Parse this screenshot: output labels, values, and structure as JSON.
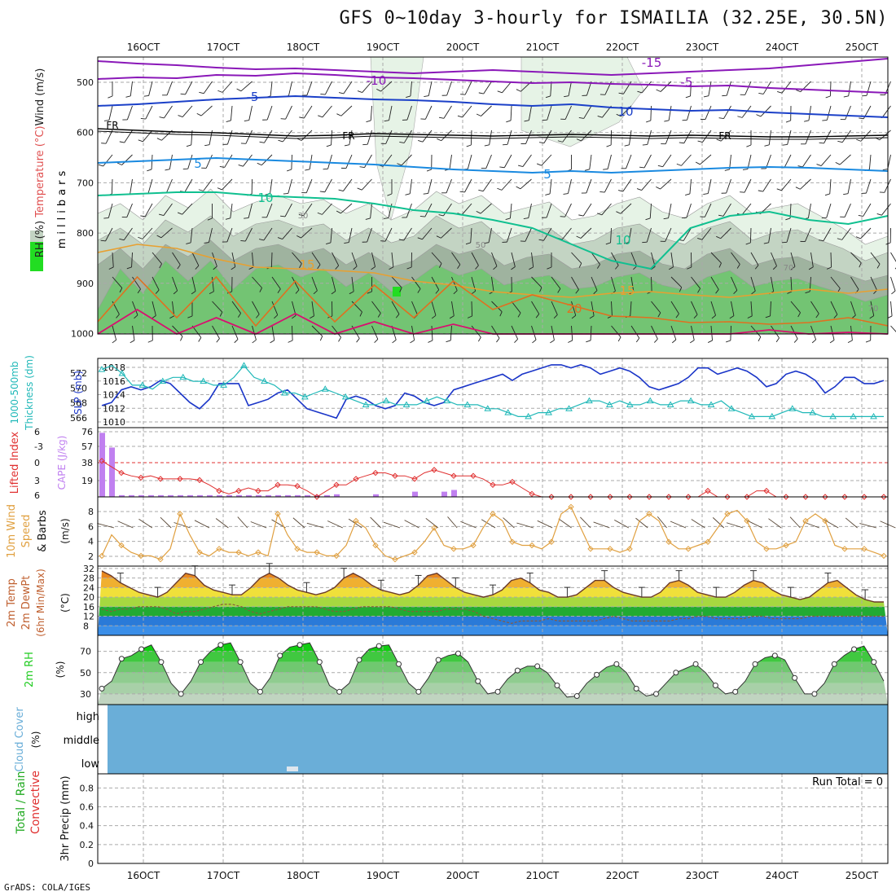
{
  "title": "GFS 0~10day 3-hourly for ISMAILIA (32.25E, 30.5N)",
  "footer": "GrADS: COLA/IGES",
  "colors": {
    "rh_light": "#e6f3e6",
    "rh_mid": "#c3d4c3",
    "rh_dark": "#9fb39f",
    "rh_green": "#6cc86c",
    "rh_bright": "#22dd22",
    "temp_orange": "#e8a030",
    "temp_dark_orange": "#e07020",
    "temp_pink": "#d81070",
    "temp_purple": "#8a18b8",
    "temp_blue": "#1b40c8",
    "temp_lightblue": "#1a8ae0",
    "temp_teal": "#10c090",
    "slp": "#1a35c8",
    "thickness": "#20b8b8",
    "lifted": "#e03030",
    "cape": "#c080f0",
    "wind10": "#e0a040",
    "cloud": "#6aaed8",
    "rh2m": "#22cc22"
  },
  "chart_data": [
    {
      "id": "upper-air",
      "type": "contour",
      "xlabels": [
        "16OCT",
        "17OCT",
        "18OCT",
        "19OCT",
        "20OCT",
        "21OCT",
        "22OCT",
        "23OCT",
        "24OCT",
        "25OCT"
      ],
      "ylabel": "millibars",
      "yticks": [
        500,
        600,
        700,
        800,
        900,
        1000
      ],
      "legend": [
        "RH (%)",
        "Temperature (°C)",
        "Wind (m/s)"
      ],
      "contour_labels": [
        "-15",
        "-10",
        "-5",
        "FR",
        "FR",
        "FR",
        "5",
        "5",
        "10",
        "10",
        "15",
        "15",
        "20",
        "-5",
        "10",
        "30",
        "50",
        "70",
        "70"
      ]
    },
    {
      "id": "slp-thickness",
      "type": "line",
      "left_ylabel": "1000-500mb Thickness (dm)",
      "left_yticks": [
        566,
        568,
        570,
        572
      ],
      "right_ylabel": "SLP (mb)",
      "right_yticks": [
        1010,
        1012,
        1014,
        1016,
        1018
      ],
      "series": [
        {
          "name": "SLP (mb)",
          "values": [
            1012,
            1012.5,
            1014.5,
            1015,
            1014.5,
            1015,
            1016,
            1015.5,
            1014,
            1012.5,
            1011.5,
            1013,
            1015.5,
            1015.5,
            1015.5,
            1012,
            1012.5,
            1013,
            1014,
            1014.5,
            1013,
            1011.5,
            1011,
            1010.5,
            1010,
            1013,
            1013.5,
            1013,
            1012,
            1011.5,
            1012,
            1014,
            1013.5,
            1012.5,
            1012,
            1012.5,
            1014.5,
            1015,
            1015.5,
            1016,
            1016.5,
            1017,
            1016,
            1017,
            1017.5,
            1018,
            1018.5,
            1018.5,
            1018,
            1018.5,
            1018,
            1017,
            1017.5,
            1018,
            1017.5,
            1016.5,
            1015,
            1014.5,
            1015,
            1015.5,
            1016.5,
            1018,
            1018,
            1017,
            1017.5,
            1018,
            1017.5,
            1016.5,
            1015,
            1015.5,
            1017,
            1017.5,
            1017,
            1016,
            1014,
            1015,
            1016.5,
            1016.5,
            1015.5,
            1015.5,
            1016
          ]
        },
        {
          "name": "1000-500mb Thickness (dm)",
          "values": [
            572,
            572.5,
            571.5,
            570,
            570,
            569.5,
            570.5,
            571,
            571,
            570.5,
            570.5,
            570,
            570,
            571,
            572.5,
            571,
            570.5,
            570,
            569,
            569,
            568.5,
            569,
            569.5,
            569,
            568.5,
            568,
            567.5,
            567.5,
            568,
            567.5,
            567.5,
            567.5,
            568,
            568.5,
            568,
            567.5,
            567.5,
            567.5,
            567,
            567,
            566.5,
            566,
            566,
            566.5,
            566.5,
            567,
            567,
            567.5,
            568,
            568,
            567.5,
            568,
            567.5,
            567.5,
            568,
            567.5,
            567.5,
            568,
            568,
            567.5,
            567.5,
            568,
            567,
            566.5,
            566,
            566,
            566,
            566.5,
            567,
            566.5,
            566.5,
            566,
            566,
            566,
            566,
            566,
            566,
            566
          ]
        }
      ]
    },
    {
      "id": "lifted-cape",
      "type": "line+bar",
      "left_ylabel": "Lifted Index",
      "left_yticks": [
        "6",
        "-3",
        "0",
        "3",
        "6"
      ],
      "right_ylabel": "CAPE (J/kg)",
      "right_yticks": [
        19,
        38,
        57,
        76
      ],
      "series": [
        {
          "name": "Lifted Index",
          "values": [
            0,
            1,
            2,
            2.5,
            2.8,
            2.5,
            3,
            3,
            3,
            3,
            3.2,
            4,
            5,
            5.5,
            5,
            4.5,
            5,
            5,
            4,
            4,
            4.2,
            5,
            6,
            5,
            4,
            4,
            3,
            2.5,
            2,
            2,
            2.5,
            2.5,
            3,
            2,
            1.5,
            2,
            2.5,
            2.5,
            2.5,
            3,
            4,
            4,
            3.5,
            4.5,
            5.5,
            6,
            6,
            6,
            6,
            6,
            6,
            6,
            6,
            6,
            6,
            6,
            6,
            6,
            6,
            6,
            6,
            6,
            5,
            6,
            6,
            6,
            6,
            5,
            5,
            6,
            6,
            6,
            6,
            6,
            6,
            6,
            6,
            6,
            6,
            6,
            6
          ]
        },
        {
          "name": "CAPE (J/kg)",
          "values": [
            74,
            57,
            2,
            2,
            2,
            2,
            2,
            2,
            2,
            2,
            2,
            2,
            2,
            2,
            2,
            2,
            2,
            2,
            2,
            2,
            2,
            2,
            2,
            2,
            3,
            0,
            0,
            0,
            3,
            0,
            0,
            0,
            6,
            0,
            0,
            6,
            8,
            0,
            0,
            0,
            0,
            0,
            0,
            0,
            0,
            0,
            0,
            0,
            0,
            0,
            0,
            0,
            0,
            0,
            0,
            0,
            0,
            0,
            0,
            0,
            0,
            0,
            0,
            0,
            0,
            0,
            0,
            0,
            0,
            0,
            0,
            0,
            0,
            0,
            0,
            0,
            0,
            0,
            0,
            0,
            0
          ]
        }
      ]
    },
    {
      "id": "wind10m",
      "type": "line",
      "left_ylabel": "10m Wind Speed & Barbs",
      "right_ylabel": "(m/s)",
      "yticks": [
        2,
        4,
        6,
        8
      ],
      "series": [
        {
          "name": "10m Wind Speed",
          "values": [
            2,
            5,
            3.5,
            2.5,
            2,
            2,
            1.5,
            3,
            8,
            5,
            2.5,
            2,
            3,
            2.5,
            2.5,
            2,
            2.5,
            2,
            8,
            5,
            3,
            2.5,
            2.5,
            2,
            2,
            3.5,
            7,
            6,
            3.5,
            2,
            1.5,
            2,
            2.5,
            4,
            6,
            3.5,
            3,
            3,
            3.5,
            6,
            8,
            7,
            4,
            3.5,
            3.5,
            3,
            4,
            8,
            9,
            6,
            3,
            3,
            3,
            2.5,
            3,
            7,
            8,
            7,
            4,
            3,
            3,
            3.5,
            4,
            6,
            8,
            8.5,
            7,
            4,
            3,
            3,
            3.5,
            4,
            7,
            8,
            7,
            3.5,
            3,
            3,
            3,
            2.5,
            2
          ]
        }
      ]
    },
    {
      "id": "temp2m",
      "type": "area",
      "left_ylabel": "2m Temp 2m DewPt (6hr Min/Max)",
      "right_ylabel": "(°C)",
      "yticks": [
        8,
        12,
        16,
        20,
        24,
        28,
        32
      ],
      "series": [
        {
          "name": "2m Temp",
          "values": [
            31,
            29,
            26,
            24,
            22,
            21,
            20,
            22,
            26,
            30,
            29,
            25,
            23,
            22,
            21,
            21,
            24,
            28,
            30,
            28,
            25,
            23,
            22,
            21,
            22,
            24,
            28,
            30,
            28,
            25,
            23,
            22,
            21,
            22,
            25,
            29,
            30,
            27,
            24,
            22,
            21,
            20,
            21,
            23,
            27,
            28,
            26,
            23,
            22,
            20,
            20,
            21,
            24,
            27,
            27,
            24,
            22,
            21,
            20,
            20,
            22,
            26,
            27,
            25,
            22,
            21,
            20,
            20,
            22,
            25,
            27,
            26,
            23,
            21,
            20,
            19,
            20,
            23,
            26,
            27,
            24,
            21,
            19,
            18,
            18
          ]
        },
        {
          "name": "2m DewPt",
          "values": [
            15,
            14,
            15,
            15,
            16,
            16,
            16,
            15,
            13,
            14,
            14,
            15,
            16,
            17,
            17,
            16,
            14,
            13,
            14,
            15,
            16,
            16,
            16,
            16,
            15,
            14,
            14,
            15,
            16,
            16,
            16,
            16,
            15,
            14,
            14,
            14,
            14,
            15,
            15,
            15,
            14,
            12,
            11,
            10,
            9,
            10,
            10,
            10,
            11,
            10,
            10,
            10,
            10,
            10,
            11,
            12,
            11,
            10,
            10,
            10,
            10,
            10,
            11,
            11,
            12,
            12,
            11,
            11,
            11,
            11,
            12,
            12,
            11,
            11,
            11,
            11,
            12,
            12,
            12,
            12,
            12,
            12,
            12,
            12,
            12
          ]
        }
      ]
    },
    {
      "id": "rh2m",
      "type": "area",
      "left_ylabel": "2m RH",
      "right_ylabel": "(%)",
      "yticks": [
        30,
        50,
        70
      ],
      "series": [
        {
          "name": "2m RH",
          "values": [
            35,
            42,
            63,
            66,
            72,
            76,
            60,
            40,
            30,
            42,
            60,
            70,
            76,
            78,
            60,
            40,
            32,
            45,
            66,
            74,
            76,
            78,
            60,
            38,
            32,
            40,
            62,
            72,
            75,
            76,
            58,
            40,
            32,
            45,
            62,
            66,
            68,
            60,
            42,
            30,
            32,
            44,
            52,
            56,
            56,
            50,
            38,
            27,
            28,
            40,
            48,
            55,
            58,
            50,
            35,
            28,
            30,
            40,
            50,
            54,
            58,
            50,
            38,
            30,
            32,
            42,
            58,
            64,
            66,
            62,
            45,
            30,
            30,
            40,
            58,
            66,
            72,
            75,
            60,
            42
          ]
        }
      ]
    },
    {
      "id": "cloud-cover",
      "type": "heatmap",
      "left_ylabel": "Cloud Cover",
      "right_ylabel": "(%)",
      "levels": [
        "high",
        "middle",
        "low"
      ]
    },
    {
      "id": "precip",
      "type": "bar",
      "left_ylabel": "Total / Rain Convective",
      "right_ylabel": "3hr Precip (mm)",
      "yticks": [
        "0",
        "0.2",
        "0.4",
        "0.6",
        "0.8"
      ],
      "annotation": "Run Total = 0",
      "values": []
    }
  ]
}
